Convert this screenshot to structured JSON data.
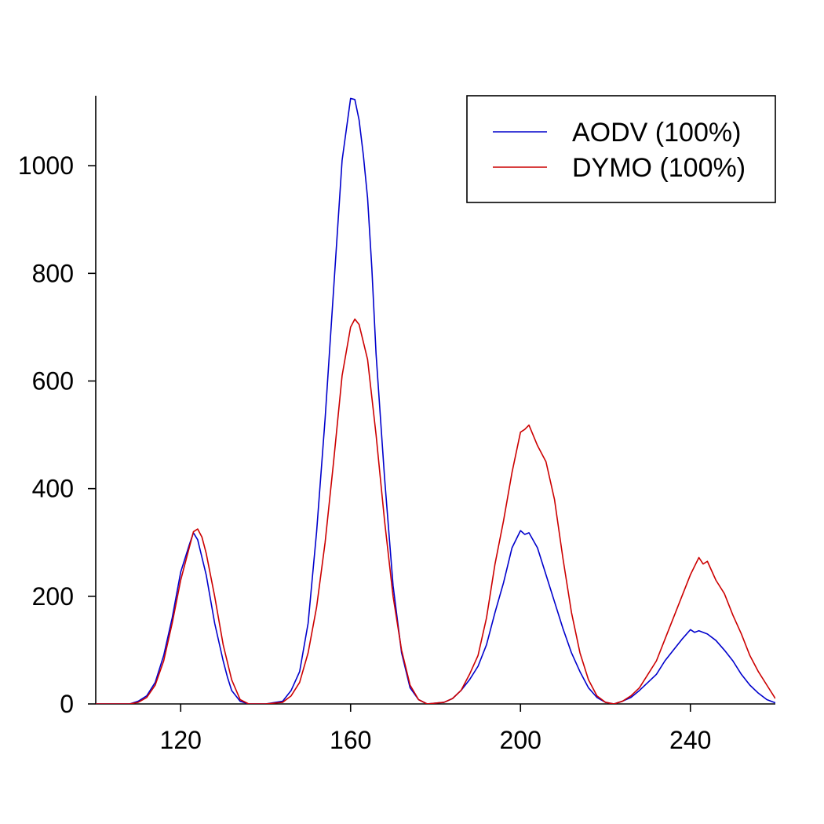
{
  "chart_data": {
    "type": "line",
    "title": "",
    "xlabel": "",
    "ylabel": "",
    "xlim": [
      100,
      260
    ],
    "ylim": [
      0,
      1130
    ],
    "x_ticks": [
      120,
      160,
      200,
      240
    ],
    "y_ticks": [
      0,
      200,
      400,
      600,
      800,
      1000
    ],
    "grid": false,
    "legend_position": "top-right",
    "series": [
      {
        "name": "AODV (100%)",
        "color": "#0000cc",
        "points": [
          [
            100,
            0
          ],
          [
            108,
            0
          ],
          [
            110,
            5
          ],
          [
            112,
            15
          ],
          [
            114,
            40
          ],
          [
            116,
            90
          ],
          [
            118,
            160
          ],
          [
            120,
            245
          ],
          [
            122,
            295
          ],
          [
            123,
            318
          ],
          [
            124,
            305
          ],
          [
            126,
            240
          ],
          [
            128,
            150
          ],
          [
            130,
            80
          ],
          [
            131,
            50
          ],
          [
            132,
            25
          ],
          [
            134,
            5
          ],
          [
            136,
            0
          ],
          [
            140,
            0
          ],
          [
            144,
            5
          ],
          [
            146,
            25
          ],
          [
            148,
            60
          ],
          [
            150,
            150
          ],
          [
            152,
            320
          ],
          [
            154,
            530
          ],
          [
            156,
            770
          ],
          [
            158,
            1010
          ],
          [
            160,
            1125
          ],
          [
            161,
            1123
          ],
          [
            162,
            1085
          ],
          [
            163,
            1020
          ],
          [
            164,
            940
          ],
          [
            165,
            810
          ],
          [
            166,
            650
          ],
          [
            168,
            420
          ],
          [
            170,
            220
          ],
          [
            172,
            95
          ],
          [
            174,
            30
          ],
          [
            176,
            8
          ],
          [
            178,
            0
          ],
          [
            182,
            3
          ],
          [
            184,
            10
          ],
          [
            186,
            25
          ],
          [
            188,
            45
          ],
          [
            190,
            70
          ],
          [
            192,
            110
          ],
          [
            194,
            170
          ],
          [
            196,
            225
          ],
          [
            198,
            290
          ],
          [
            200,
            322
          ],
          [
            201,
            315
          ],
          [
            202,
            318
          ],
          [
            204,
            290
          ],
          [
            206,
            240
          ],
          [
            208,
            190
          ],
          [
            210,
            140
          ],
          [
            212,
            95
          ],
          [
            214,
            60
          ],
          [
            216,
            30
          ],
          [
            218,
            12
          ],
          [
            220,
            3
          ],
          [
            222,
            0
          ],
          [
            224,
            5
          ],
          [
            226,
            12
          ],
          [
            228,
            25
          ],
          [
            230,
            40
          ],
          [
            232,
            55
          ],
          [
            234,
            80
          ],
          [
            236,
            100
          ],
          [
            238,
            120
          ],
          [
            240,
            138
          ],
          [
            241,
            133
          ],
          [
            242,
            136
          ],
          [
            244,
            130
          ],
          [
            246,
            118
          ],
          [
            248,
            100
          ],
          [
            250,
            80
          ],
          [
            252,
            55
          ],
          [
            254,
            35
          ],
          [
            256,
            20
          ],
          [
            258,
            8
          ],
          [
            260,
            2
          ]
        ]
      },
      {
        "name": "DYMO (100%)",
        "color": "#cc0000",
        "points": [
          [
            100,
            0
          ],
          [
            108,
            0
          ],
          [
            110,
            3
          ],
          [
            112,
            12
          ],
          [
            114,
            35
          ],
          [
            116,
            80
          ],
          [
            118,
            150
          ],
          [
            120,
            230
          ],
          [
            122,
            290
          ],
          [
            123,
            320
          ],
          [
            124,
            325
          ],
          [
            125,
            310
          ],
          [
            126,
            280
          ],
          [
            128,
            200
          ],
          [
            130,
            110
          ],
          [
            132,
            45
          ],
          [
            134,
            8
          ],
          [
            136,
            0
          ],
          [
            140,
            0
          ],
          [
            144,
            3
          ],
          [
            146,
            15
          ],
          [
            148,
            40
          ],
          [
            150,
            95
          ],
          [
            152,
            180
          ],
          [
            154,
            300
          ],
          [
            156,
            450
          ],
          [
            158,
            610
          ],
          [
            160,
            700
          ],
          [
            161,
            715
          ],
          [
            162,
            705
          ],
          [
            164,
            640
          ],
          [
            166,
            500
          ],
          [
            168,
            340
          ],
          [
            170,
            200
          ],
          [
            172,
            100
          ],
          [
            174,
            35
          ],
          [
            176,
            8
          ],
          [
            178,
            0
          ],
          [
            182,
            3
          ],
          [
            184,
            10
          ],
          [
            186,
            25
          ],
          [
            188,
            55
          ],
          [
            190,
            90
          ],
          [
            192,
            160
          ],
          [
            194,
            260
          ],
          [
            196,
            340
          ],
          [
            198,
            430
          ],
          [
            200,
            505
          ],
          [
            201,
            510
          ],
          [
            202,
            518
          ],
          [
            204,
            480
          ],
          [
            206,
            450
          ],
          [
            208,
            380
          ],
          [
            210,
            270
          ],
          [
            212,
            170
          ],
          [
            214,
            95
          ],
          [
            216,
            45
          ],
          [
            218,
            15
          ],
          [
            220,
            3
          ],
          [
            222,
            0
          ],
          [
            224,
            5
          ],
          [
            226,
            15
          ],
          [
            228,
            30
          ],
          [
            230,
            55
          ],
          [
            232,
            80
          ],
          [
            234,
            120
          ],
          [
            236,
            160
          ],
          [
            238,
            200
          ],
          [
            240,
            240
          ],
          [
            242,
            272
          ],
          [
            243,
            260
          ],
          [
            244,
            265
          ],
          [
            246,
            230
          ],
          [
            248,
            205
          ],
          [
            250,
            165
          ],
          [
            252,
            130
          ],
          [
            254,
            90
          ],
          [
            256,
            60
          ],
          [
            258,
            35
          ],
          [
            260,
            10
          ]
        ]
      }
    ]
  }
}
